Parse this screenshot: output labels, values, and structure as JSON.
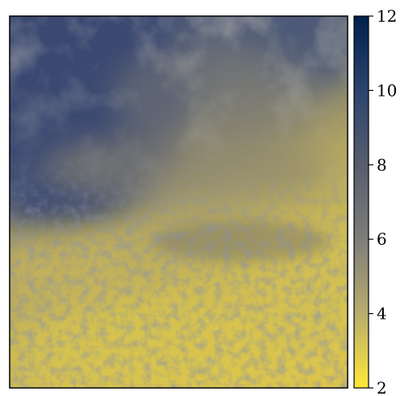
{
  "chart_data": {
    "type": "heatmap",
    "title": "",
    "xlabel": "",
    "ylabel": "",
    "colorbar": {
      "ticks": [
        2,
        4,
        6,
        8,
        10,
        12
      ],
      "range": [
        2,
        12
      ],
      "colormap": "cividis",
      "colors": [
        "#FEE838",
        "#B8AD6E",
        "#7E7D7A",
        "#575D6D",
        "#2B446E",
        "#00204D"
      ]
    }
  }
}
